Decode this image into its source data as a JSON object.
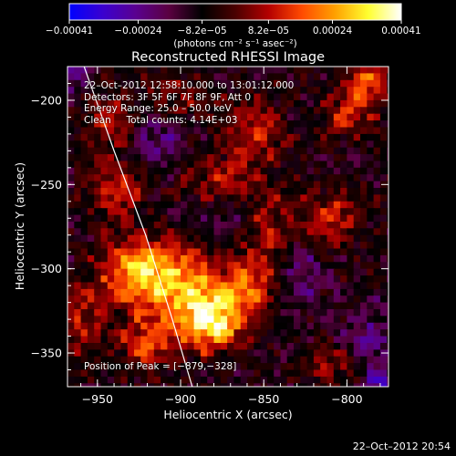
{
  "chart_data": {
    "type": "heatmap",
    "title": "Reconstructed RHESSI Image",
    "xlabel": "Heliocentric X (arcsec)",
    "ylabel": "Heliocentric Y (arcsec)",
    "xlim": [
      -968,
      -775
    ],
    "ylim": [
      -370,
      -180
    ],
    "x_ticks": [
      -950,
      -900,
      -850,
      -800
    ],
    "x_tick_labels": [
      "−950",
      "−900",
      "−850",
      "−800"
    ],
    "y_ticks": [
      -200,
      -250,
      -300,
      -350
    ],
    "y_tick_labels": [
      "−200",
      "−250",
      "−300",
      "−350"
    ],
    "colorbar": {
      "min": -0.00041,
      "max": 0.00041,
      "ticks": [
        -0.00041,
        -0.00024,
        -8.2e-05,
        8.2e-05,
        0.00024,
        0.00041
      ],
      "tick_labels": [
        "−0.00041",
        "−0.00024",
        "−8.2e−05",
        "8.2e−05",
        "0.00024",
        "0.00041"
      ],
      "unit": "(photons cm⁻² s⁻¹ asec⁻²)",
      "colors": [
        "#0000ff",
        "#3a00d0",
        "#5a0090",
        "#5a0040",
        "#000000",
        "#4a0000",
        "#b40000",
        "#ff4a00",
        "#ffa000",
        "#ffff30",
        "#ffffff"
      ]
    },
    "grid": false,
    "peak": {
      "x": -879,
      "y": -328
    },
    "limb": [
      {
        "x": -958,
        "y": -180
      },
      {
        "x": -940,
        "y": -230
      },
      {
        "x": -921,
        "y": -280
      },
      {
        "x": -905,
        "y": -330
      },
      {
        "x": -893,
        "y": -370
      }
    ],
    "sources": [
      {
        "x": -883,
        "y": -330,
        "sx": 14,
        "sy": 12,
        "amp": 1.0
      },
      {
        "x": -905,
        "y": -307,
        "sx": 22,
        "sy": 16,
        "amp": 0.8
      },
      {
        "x": -930,
        "y": -297,
        "sx": 14,
        "sy": 12,
        "amp": 0.6
      },
      {
        "x": -922,
        "y": -342,
        "sx": 12,
        "sy": 10,
        "amp": 0.55
      },
      {
        "x": -940,
        "y": -250,
        "sx": 12,
        "sy": 14,
        "amp": 0.45
      },
      {
        "x": -945,
        "y": -210,
        "sx": 12,
        "sy": 12,
        "amp": 0.35
      },
      {
        "x": -860,
        "y": -310,
        "sx": 12,
        "sy": 10,
        "amp": 0.45
      },
      {
        "x": -850,
        "y": -275,
        "sx": 14,
        "sy": 18,
        "amp": 0.45
      },
      {
        "x": -810,
        "y": -268,
        "sx": 12,
        "sy": 12,
        "amp": 0.45
      },
      {
        "x": -880,
        "y": -245,
        "sx": 16,
        "sy": 10,
        "amp": 0.35
      },
      {
        "x": -858,
        "y": -217,
        "sx": 14,
        "sy": 14,
        "amp": 0.4
      },
      {
        "x": -800,
        "y": -205,
        "sx": 12,
        "sy": 10,
        "amp": 0.45
      },
      {
        "x": -790,
        "y": -185,
        "sx": 8,
        "sy": 8,
        "amp": 0.6
      },
      {
        "x": -905,
        "y": -197,
        "sx": 14,
        "sy": 12,
        "amp": 0.3
      },
      {
        "x": -810,
        "y": -355,
        "sx": 12,
        "sy": 8,
        "amp": 0.35
      },
      {
        "x": -962,
        "y": -330,
        "sx": 10,
        "sy": 16,
        "amp": 0.4
      },
      {
        "x": -830,
        "y": -300,
        "sx": 10,
        "sy": 14,
        "amp": -0.35
      },
      {
        "x": -870,
        "y": -270,
        "sx": 14,
        "sy": 10,
        "amp": -0.3
      },
      {
        "x": -915,
        "y": -220,
        "sx": 14,
        "sy": 12,
        "amp": -0.3
      },
      {
        "x": -790,
        "y": -340,
        "sx": 10,
        "sy": 12,
        "amp": -0.35
      },
      {
        "x": -783,
        "y": -365,
        "sx": 6,
        "sy": 6,
        "amp": -0.5
      },
      {
        "x": -965,
        "y": -185,
        "sx": 8,
        "sy": 8,
        "amp": -0.3
      }
    ]
  },
  "annotations": {
    "time_range": "22–Oct–2012 12:58:10.000 to 13:01:12.000",
    "detectors": "Detectors: 3F 5F 6F 7F 8F 9F, Att 0",
    "energy_range": "Energy Range: 25.0 – 50.0 keV",
    "method": "Clean     Total counts: 4.14E+03",
    "peak_position": "Position of Peak = [−879,−328]"
  },
  "timestamp": "22–Oct–2012 20:54"
}
